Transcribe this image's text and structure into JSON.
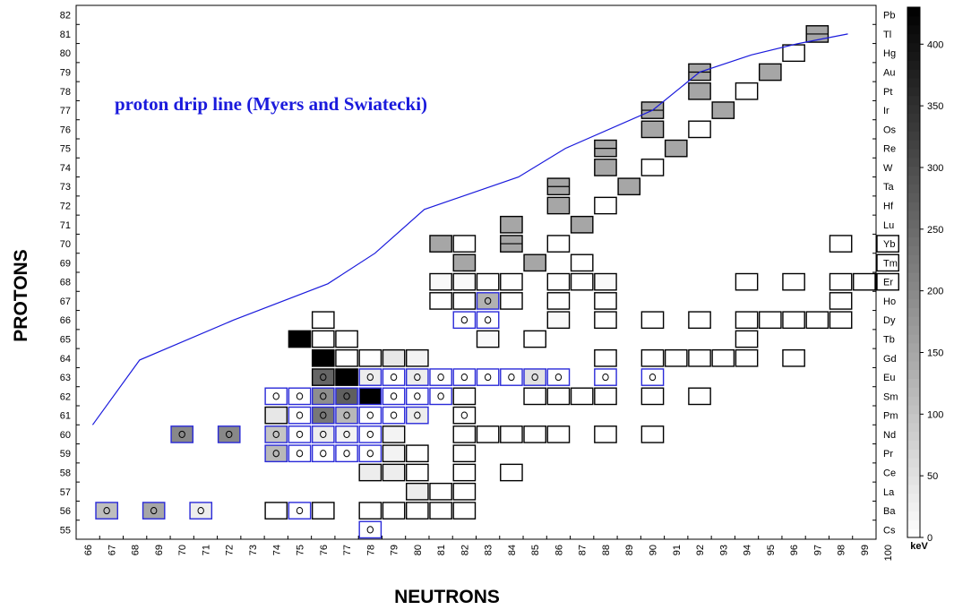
{
  "chart_data": {
    "type": "heatmap",
    "title": "",
    "xlabel": "NEUTRONS",
    "ylabel": "PROTONS",
    "xlim": [
      66,
      100
    ],
    "ylim": [
      55,
      82
    ],
    "x_ticks": [
      "66",
      "67",
      "68",
      "69",
      "70",
      "71",
      "72",
      "73",
      "74",
      "75",
      "76",
      "77",
      "78",
      "79",
      "80",
      "81",
      "82",
      "83",
      "84",
      "85",
      "86",
      "87",
      "88",
      "89",
      "90",
      "91",
      "92",
      "93",
      "94",
      "95",
      "96",
      "97",
      "98",
      "99",
      "100"
    ],
    "y_ticks": [
      "55",
      "56",
      "57",
      "58",
      "59",
      "60",
      "61",
      "62",
      "63",
      "64",
      "65",
      "66",
      "67",
      "68",
      "69",
      "70",
      "71",
      "72",
      "73",
      "74",
      "75",
      "76",
      "77",
      "78",
      "79",
      "80",
      "81",
      "82"
    ],
    "element_labels": [
      "Cs",
      "Ba",
      "La",
      "Ce",
      "Pr",
      "Nd",
      "Pm",
      "Sm",
      "Eu",
      "Gd",
      "Tb",
      "Dy",
      "Ho",
      "Er",
      "Tm",
      "Yb",
      "Lu",
      "Hf",
      "Ta",
      "W",
      "Re",
      "Os",
      "Ir",
      "Pt",
      "Au",
      "Hg",
      "Tl",
      "Pb"
    ],
    "colorbar": {
      "label": "keV",
      "min": 0,
      "max": 430,
      "ticks": [
        "0",
        "50",
        "100",
        "150",
        "200",
        "250",
        "300",
        "350",
        "400"
      ]
    },
    "annotation": "proton drip line (Myers and Swiatecki)",
    "drip_line": {
      "color": "#1a1adc",
      "points": [
        [
          66.7,
          60.5
        ],
        [
          68.7,
          63.9
        ],
        [
          72.7,
          66.0
        ],
        [
          76.7,
          67.9
        ],
        [
          78.7,
          69.5
        ],
        [
          80.8,
          71.8
        ],
        [
          84.8,
          73.5
        ],
        [
          86.8,
          75.0
        ],
        [
          90.5,
          77.0
        ],
        [
          92.5,
          79.0
        ],
        [
          94.7,
          79.9
        ],
        [
          96.7,
          80.5
        ],
        [
          98.8,
          81.0
        ]
      ]
    },
    "cells_note": "each cell: [N, Z, keV value or null for empty box, proton-emitter circle 0/1, blue outline 0/1, half-height 0/1]",
    "cells": [
      [
        78,
        55,
        0,
        1,
        1,
        0
      ],
      [
        66.8,
        56,
        110,
        1,
        1,
        0
      ],
      [
        68.8,
        56,
        150,
        1,
        1,
        0
      ],
      [
        70.8,
        56,
        30,
        1,
        1,
        0
      ],
      [
        74,
        56,
        null,
        0,
        0,
        0
      ],
      [
        75,
        56,
        0,
        1,
        1,
        0
      ],
      [
        76,
        56,
        null,
        0,
        0,
        0
      ],
      [
        78,
        56,
        null,
        0,
        0,
        0
      ],
      [
        79,
        56,
        null,
        0,
        0,
        0
      ],
      [
        80,
        56,
        null,
        0,
        0,
        0
      ],
      [
        81,
        56,
        null,
        0,
        0,
        0
      ],
      [
        82,
        56,
        null,
        0,
        0,
        0
      ],
      [
        80,
        57,
        30,
        0,
        0,
        0
      ],
      [
        81,
        57,
        null,
        0,
        0,
        0
      ],
      [
        82,
        57,
        null,
        0,
        0,
        0
      ],
      [
        78,
        58,
        30,
        0,
        0,
        0
      ],
      [
        79,
        58,
        30,
        0,
        0,
        0
      ],
      [
        80,
        58,
        null,
        0,
        0,
        0
      ],
      [
        82,
        58,
        null,
        0,
        0,
        0
      ],
      [
        84,
        58,
        null,
        0,
        0,
        0
      ],
      [
        74,
        59,
        120,
        1,
        1,
        0
      ],
      [
        75,
        59,
        0,
        1,
        1,
        0
      ],
      [
        76,
        59,
        0,
        1,
        1,
        0
      ],
      [
        77,
        59,
        0,
        1,
        1,
        0
      ],
      [
        78,
        59,
        0,
        1,
        1,
        0
      ],
      [
        79,
        59,
        20,
        0,
        0,
        0
      ],
      [
        80,
        59,
        null,
        0,
        0,
        0
      ],
      [
        82,
        59,
        null,
        0,
        0,
        0
      ],
      [
        70,
        60,
        200,
        1,
        1,
        0
      ],
      [
        72,
        60,
        200,
        1,
        1,
        0
      ],
      [
        74,
        60,
        100,
        1,
        1,
        0
      ],
      [
        75,
        60,
        0,
        1,
        1,
        0
      ],
      [
        76,
        60,
        30,
        1,
        1,
        0
      ],
      [
        77,
        60,
        20,
        1,
        1,
        0
      ],
      [
        78,
        60,
        0,
        1,
        1,
        0
      ],
      [
        79,
        60,
        20,
        0,
        0,
        0
      ],
      [
        82,
        60,
        null,
        0,
        0,
        0
      ],
      [
        83,
        60,
        null,
        0,
        0,
        0
      ],
      [
        84,
        60,
        null,
        0,
        0,
        0
      ],
      [
        85,
        60,
        null,
        0,
        0,
        0
      ],
      [
        86,
        60,
        null,
        0,
        0,
        0
      ],
      [
        88,
        60,
        null,
        0,
        0,
        0
      ],
      [
        90,
        60,
        null,
        0,
        0,
        0
      ],
      [
        74,
        61,
        40,
        0,
        0,
        0
      ],
      [
        75,
        61,
        0,
        1,
        1,
        0
      ],
      [
        76,
        61,
        230,
        1,
        1,
        0
      ],
      [
        77,
        61,
        120,
        1,
        1,
        0
      ],
      [
        78,
        61,
        0,
        1,
        1,
        0
      ],
      [
        79,
        61,
        0,
        1,
        1,
        0
      ],
      [
        80,
        61,
        30,
        1,
        1,
        0
      ],
      [
        82,
        61,
        0,
        1,
        0,
        0
      ],
      [
        74,
        62,
        0,
        1,
        1,
        0
      ],
      [
        75,
        62,
        0,
        1,
        1,
        0
      ],
      [
        76,
        62,
        190,
        1,
        1,
        0
      ],
      [
        77,
        62,
        270,
        1,
        1,
        0
      ],
      [
        78,
        62,
        430,
        1,
        1,
        0
      ],
      [
        79,
        62,
        0,
        1,
        1,
        0
      ],
      [
        80,
        62,
        0,
        1,
        1,
        0
      ],
      [
        81,
        62,
        0,
        1,
        1,
        0
      ],
      [
        82,
        62,
        null,
        0,
        0,
        0
      ],
      [
        85,
        62,
        null,
        0,
        0,
        0
      ],
      [
        86,
        62,
        null,
        0,
        0,
        0
      ],
      [
        87,
        62,
        null,
        0,
        0,
        0
      ],
      [
        88,
        62,
        null,
        0,
        0,
        0
      ],
      [
        90,
        62,
        null,
        0,
        0,
        0
      ],
      [
        92,
        62,
        null,
        0,
        0,
        0
      ],
      [
        76,
        63,
        260,
        1,
        0,
        0
      ],
      [
        77,
        63,
        430,
        0,
        0,
        0
      ],
      [
        78,
        63,
        30,
        1,
        1,
        0
      ],
      [
        79,
        63,
        0,
        1,
        1,
        0
      ],
      [
        80,
        63,
        30,
        1,
        1,
        0
      ],
      [
        81,
        63,
        0,
        1,
        1,
        0
      ],
      [
        82,
        63,
        0,
        1,
        1,
        0
      ],
      [
        83,
        63,
        0,
        1,
        1,
        0
      ],
      [
        84,
        63,
        0,
        1,
        1,
        0
      ],
      [
        85,
        63,
        50,
        1,
        1,
        0
      ],
      [
        86,
        63,
        0,
        1,
        1,
        0
      ],
      [
        88,
        63,
        0,
        1,
        1,
        0
      ],
      [
        90,
        63,
        0,
        1,
        1,
        0
      ],
      [
        76,
        64,
        430,
        0,
        0,
        0
      ],
      [
        77,
        64,
        null,
        0,
        0,
        0
      ],
      [
        78,
        64,
        null,
        0,
        0,
        0
      ],
      [
        79,
        64,
        40,
        0,
        0,
        0
      ],
      [
        80,
        64,
        20,
        0,
        0,
        0
      ],
      [
        88,
        64,
        null,
        0,
        0,
        0
      ],
      [
        90,
        64,
        null,
        0,
        0,
        0
      ],
      [
        91,
        64,
        null,
        0,
        0,
        0
      ],
      [
        92,
        64,
        null,
        0,
        0,
        0
      ],
      [
        93,
        64,
        null,
        0,
        0,
        0
      ],
      [
        94,
        64,
        null,
        0,
        0,
        0
      ],
      [
        96,
        64,
        null,
        0,
        0,
        0
      ],
      [
        75,
        65,
        430,
        0,
        0,
        0
      ],
      [
        76,
        65,
        null,
        0,
        0,
        0
      ],
      [
        77,
        65,
        null,
        0,
        0,
        0
      ],
      [
        83,
        65,
        10,
        0,
        0,
        0
      ],
      [
        85,
        65,
        null,
        0,
        0,
        0
      ],
      [
        94,
        65,
        null,
        0,
        0,
        0
      ],
      [
        76,
        66,
        null,
        0,
        0,
        0
      ],
      [
        82,
        66,
        0,
        1,
        1,
        0
      ],
      [
        83,
        66,
        0,
        1,
        1,
        0
      ],
      [
        86,
        66,
        10,
        0,
        0,
        0
      ],
      [
        88,
        66,
        null,
        0,
        0,
        0
      ],
      [
        90,
        66,
        null,
        0,
        0,
        0
      ],
      [
        92,
        66,
        null,
        0,
        0,
        0
      ],
      [
        94,
        66,
        null,
        0,
        0,
        0
      ],
      [
        95,
        66,
        null,
        0,
        0,
        0
      ],
      [
        96,
        66,
        null,
        0,
        0,
        0
      ],
      [
        97,
        66,
        null,
        0,
        0,
        0
      ],
      [
        98,
        66,
        null,
        0,
        0,
        0
      ],
      [
        81,
        67,
        null,
        0,
        0,
        0
      ],
      [
        82,
        67,
        null,
        0,
        0,
        0
      ],
      [
        83,
        67,
        130,
        1,
        1,
        0
      ],
      [
        84,
        67,
        null,
        0,
        0,
        0
      ],
      [
        86,
        67,
        null,
        0,
        0,
        0
      ],
      [
        88,
        67,
        null,
        0,
        0,
        0
      ],
      [
        98,
        67,
        null,
        0,
        0,
        0
      ],
      [
        81,
        68,
        10,
        0,
        0,
        0
      ],
      [
        82,
        68,
        10,
        0,
        0,
        0
      ],
      [
        83,
        68,
        null,
        0,
        0,
        0
      ],
      [
        84,
        68,
        null,
        0,
        0,
        0
      ],
      [
        86,
        68,
        null,
        0,
        0,
        0
      ],
      [
        87,
        68,
        null,
        0,
        0,
        0
      ],
      [
        88,
        68,
        10,
        0,
        0,
        0
      ],
      [
        94,
        68,
        null,
        0,
        0,
        0
      ],
      [
        96,
        68,
        null,
        0,
        0,
        0
      ],
      [
        98,
        68,
        null,
        0,
        0,
        0
      ],
      [
        99,
        68,
        null,
        0,
        0,
        0
      ],
      [
        100,
        68,
        null,
        0,
        0,
        0
      ],
      [
        82,
        69,
        150,
        0,
        0,
        0
      ],
      [
        85,
        69,
        150,
        0,
        0,
        0
      ],
      [
        87,
        69,
        null,
        0,
        0,
        0
      ],
      [
        100,
        69,
        null,
        0,
        0,
        0
      ],
      [
        81,
        70,
        150,
        0,
        0,
        0
      ],
      [
        82,
        70,
        null,
        0,
        0,
        0
      ],
      [
        84,
        70,
        150,
        0,
        0,
        1
      ],
      [
        86,
        70,
        null,
        0,
        0,
        0
      ],
      [
        98,
        70,
        null,
        0,
        0,
        0
      ],
      [
        100,
        70,
        null,
        0,
        0,
        0
      ],
      [
        84,
        71,
        150,
        0,
        0,
        0
      ],
      [
        87,
        71,
        150,
        0,
        0,
        0
      ],
      [
        86,
        72,
        150,
        0,
        0,
        0
      ],
      [
        88,
        72,
        null,
        0,
        0,
        0
      ],
      [
        86,
        73,
        150,
        0,
        0,
        1
      ],
      [
        89,
        73,
        150,
        0,
        0,
        0
      ],
      [
        88,
        74,
        150,
        0,
        0,
        0
      ],
      [
        90,
        74,
        null,
        0,
        0,
        0
      ],
      [
        88,
        75,
        150,
        0,
        0,
        1
      ],
      [
        91,
        75,
        150,
        0,
        0,
        0
      ],
      [
        90,
        76,
        150,
        0,
        0,
        0
      ],
      [
        92,
        76,
        null,
        0,
        0,
        0
      ],
      [
        90,
        77,
        150,
        0,
        0,
        1
      ],
      [
        93,
        77,
        150,
        0,
        0,
        0
      ],
      [
        92,
        78,
        150,
        0,
        0,
        0
      ],
      [
        94,
        78,
        null,
        0,
        0,
        0
      ],
      [
        92,
        79,
        150,
        0,
        0,
        1
      ],
      [
        95,
        79,
        150,
        0,
        0,
        0
      ],
      [
        96,
        80,
        null,
        0,
        0,
        0
      ],
      [
        97,
        81,
        150,
        0,
        0,
        1
      ]
    ]
  }
}
